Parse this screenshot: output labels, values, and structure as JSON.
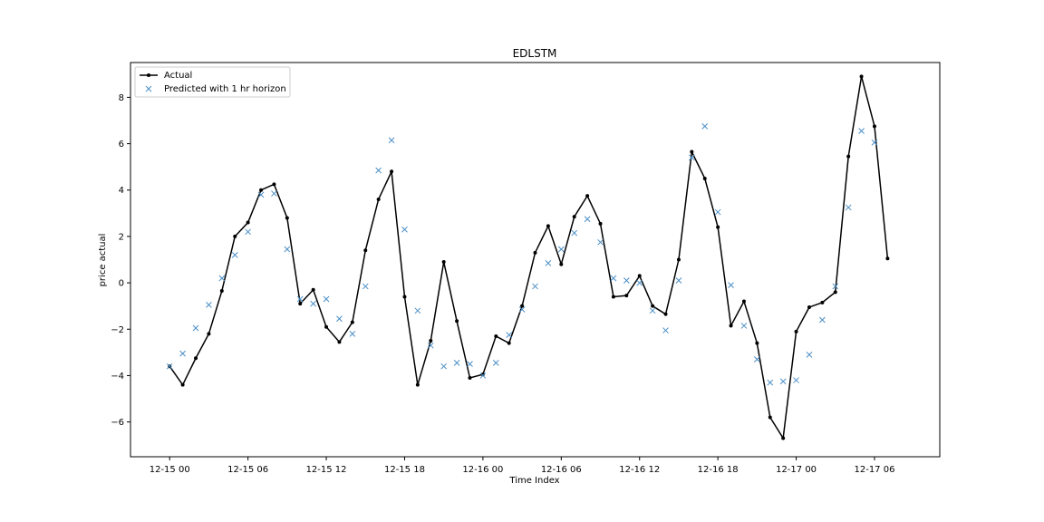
{
  "chart_data": {
    "type": "line",
    "title": "EDLSTM",
    "xlabel": "Time Index",
    "ylabel": "price actual",
    "x_start": "12-15 00",
    "x_step_hours": 1,
    "xlim": [
      "12-14 21",
      "12-17 11"
    ],
    "ylim": [
      -7.5,
      9.5
    ],
    "xticks": [
      "12-15 00",
      "12-15 06",
      "12-15 12",
      "12-15 18",
      "12-16 00",
      "12-16 06",
      "12-16 12",
      "12-16 18",
      "12-17 00",
      "12-17 06"
    ],
    "yticks": [
      -6,
      -4,
      -2,
      0,
      2,
      4,
      6,
      8
    ],
    "grid": false,
    "legend_position": "top-left",
    "series": [
      {
        "name": "Actual",
        "style": "line-with-dots",
        "color": "#000000",
        "values": [
          -3.6,
          -4.4,
          -3.25,
          -2.2,
          -0.35,
          2.0,
          2.6,
          4.0,
          4.25,
          2.8,
          -0.9,
          -0.3,
          -1.9,
          -2.55,
          -1.7,
          1.4,
          3.6,
          4.8,
          -0.6,
          -4.4,
          -2.5,
          0.9,
          -1.65,
          -4.1,
          -3.95,
          -2.3,
          -2.6,
          -1.0,
          1.3,
          2.45,
          0.8,
          2.85,
          3.75,
          2.55,
          -0.6,
          -0.55,
          0.3,
          -1.0,
          -1.35,
          1.0,
          5.65,
          4.5,
          2.4,
          -1.85,
          -0.8,
          -2.6,
          -5.8,
          -6.7,
          -2.1,
          -1.05,
          -0.85,
          -0.4,
          5.45,
          8.9,
          6.75,
          1.05
        ]
      },
      {
        "name": "Predicted with 1 hr horizon",
        "style": "x-markers",
        "color": "#4c8fc6",
        "values": [
          -3.6,
          -3.05,
          -1.95,
          -0.95,
          0.2,
          1.2,
          2.2,
          3.8,
          3.85,
          1.45,
          -0.7,
          -0.9,
          -0.7,
          -1.55,
          -2.2,
          -0.15,
          4.85,
          6.15,
          2.3,
          -1.2,
          -2.7,
          -3.6,
          -3.45,
          -3.5,
          -4.0,
          -3.45,
          -2.25,
          -1.15,
          -0.15,
          0.85,
          1.45,
          2.15,
          2.75,
          1.75,
          0.2,
          0.1,
          0.0,
          -1.2,
          -2.05,
          0.1,
          5.4,
          6.75,
          3.05,
          -0.1,
          -1.85,
          -3.3,
          -4.3,
          -4.25,
          -4.2,
          -3.1,
          -1.6,
          -0.15,
          3.25,
          6.55,
          6.05
        ]
      }
    ]
  }
}
